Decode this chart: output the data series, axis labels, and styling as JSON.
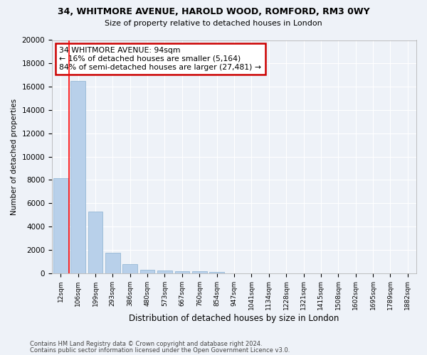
{
  "title_line1": "34, WHITMORE AVENUE, HAROLD WOOD, ROMFORD, RM3 0WY",
  "title_line2": "Size of property relative to detached houses in London",
  "xlabel": "Distribution of detached houses by size in London",
  "ylabel": "Number of detached properties",
  "categories": [
    "12sqm",
    "106sqm",
    "199sqm",
    "293sqm",
    "386sqm",
    "480sqm",
    "573sqm",
    "667sqm",
    "760sqm",
    "854sqm",
    "947sqm",
    "1041sqm",
    "1134sqm",
    "1228sqm",
    "1321sqm",
    "1415sqm",
    "1508sqm",
    "1602sqm",
    "1695sqm",
    "1789sqm",
    "1882sqm"
  ],
  "values": [
    8150,
    16500,
    5300,
    1750,
    750,
    310,
    200,
    160,
    130,
    115,
    0,
    0,
    0,
    0,
    0,
    0,
    0,
    0,
    0,
    0,
    0
  ],
  "bar_color": "#b8d0ea",
  "bar_edge_color": "#8ab0d0",
  "annotation_title": "34 WHITMORE AVENUE: 94sqm",
  "annotation_line1": "← 16% of detached houses are smaller (5,164)",
  "annotation_line2": "84% of semi-detached houses are larger (27,481) →",
  "annotation_box_color": "#cc0000",
  "red_line_x": 0.5,
  "ylim": [
    0,
    20000
  ],
  "yticks": [
    0,
    2000,
    4000,
    6000,
    8000,
    10000,
    12000,
    14000,
    16000,
    18000,
    20000
  ],
  "footer_line1": "Contains HM Land Registry data © Crown copyright and database right 2024.",
  "footer_line2": "Contains public sector information licensed under the Open Government Licence v3.0.",
  "background_color": "#eef2f8",
  "plot_background": "#eef2f8",
  "grid_color": "#ffffff",
  "figsize": [
    6.0,
    5.0
  ],
  "dpi": 100
}
